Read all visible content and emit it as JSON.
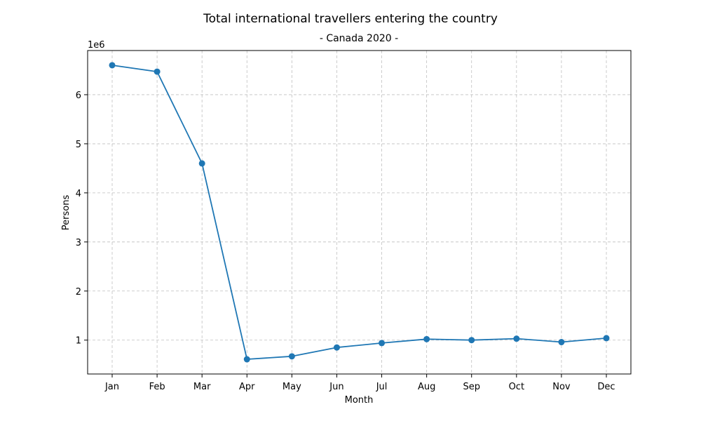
{
  "chart_data": {
    "type": "line",
    "title": "Total international travellers entering the country",
    "subtitle": "- Canada 2020 -",
    "xlabel": "Month",
    "ylabel": "Persons",
    "y_offset_label": "1e6",
    "categories": [
      "Jan",
      "Feb",
      "Mar",
      "Apr",
      "May",
      "Jun",
      "Jul",
      "Aug",
      "Sep",
      "Oct",
      "Nov",
      "Dec"
    ],
    "series": [
      {
        "values": [
          6600000,
          6470000,
          4600000,
          610000,
          670000,
          850000,
          940000,
          1020000,
          1000000,
          1030000,
          960000,
          1040000
        ],
        "color": "#1f77b4",
        "marker": "circle"
      }
    ],
    "yticks": [
      1,
      2,
      3,
      4,
      5,
      6
    ],
    "ytick_scale": 1000000,
    "ylim": [
      310000,
      6900000
    ],
    "grid": true,
    "grid_style": "dashed"
  }
}
